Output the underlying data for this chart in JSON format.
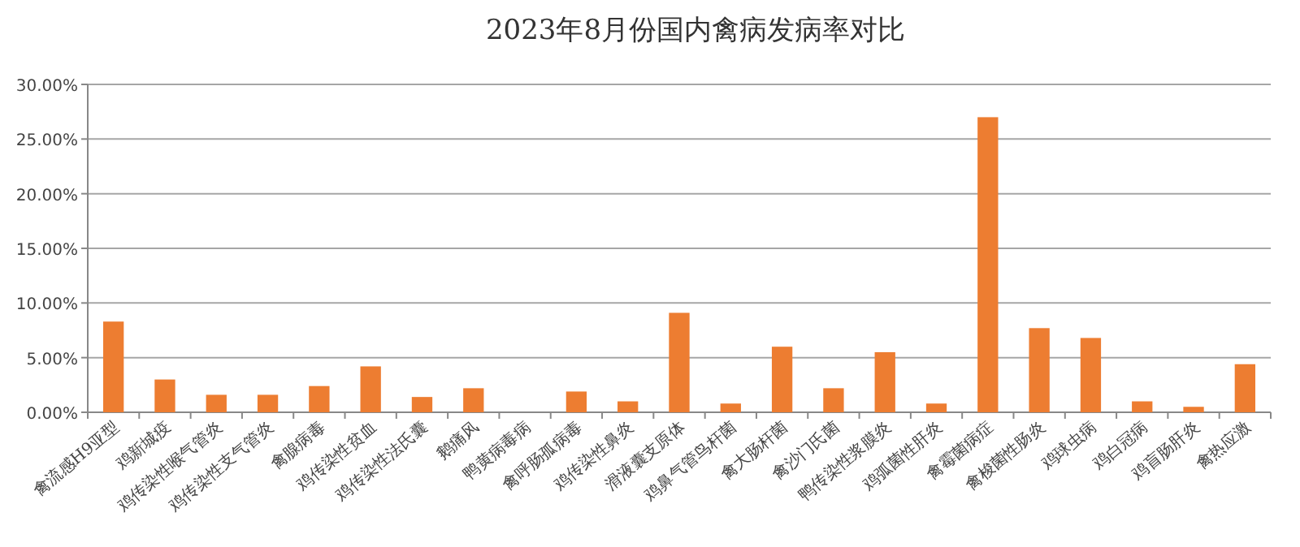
{
  "chart_data": {
    "type": "bar",
    "title": "2023年8月份国内禽病发病率对比",
    "categories": [
      "禽流感H9亚型",
      "鸡新城疫",
      "鸡传染性喉气管炎",
      "鸡传染性支气管炎",
      "禽腺病毒",
      "鸡传染性贫血",
      "鸡传染性法氏囊",
      "鹅痛风",
      "鸭黄病毒病",
      "禽呼肠孤病毒",
      "鸡传染性鼻炎",
      "滑液囊支原体",
      "鸡鼻气管鸟杆菌",
      "禽大肠杆菌",
      "禽沙门氏菌",
      "鸭传染性浆膜炎",
      "鸡弧菌性肝炎",
      "禽霉菌病症",
      "禽梭菌性肠炎",
      "鸡球虫病",
      "鸡白冠病",
      "鸡盲肠肝炎",
      "禽热应激"
    ],
    "values": [
      8.3,
      3.0,
      1.6,
      1.6,
      2.4,
      4.2,
      1.4,
      2.2,
      0,
      1.9,
      1.0,
      9.1,
      0.8,
      6.0,
      2.2,
      5.5,
      0.8,
      27.0,
      7.7,
      6.8,
      1.0,
      0.5,
      4.4
    ],
    "color": "#ed7d31",
    "ylim": [
      0,
      30
    ],
    "yticks": [
      {
        "value": 0,
        "label": "0.00%"
      },
      {
        "value": 5,
        "label": "5.00%"
      },
      {
        "value": 10,
        "label": "10.00%"
      },
      {
        "value": 15,
        "label": "15.00%"
      },
      {
        "value": 20,
        "label": "20.00%"
      },
      {
        "value": 25,
        "label": "25.00%"
      },
      {
        "value": 30,
        "label": "30.00%"
      }
    ],
    "grid": "y"
  }
}
